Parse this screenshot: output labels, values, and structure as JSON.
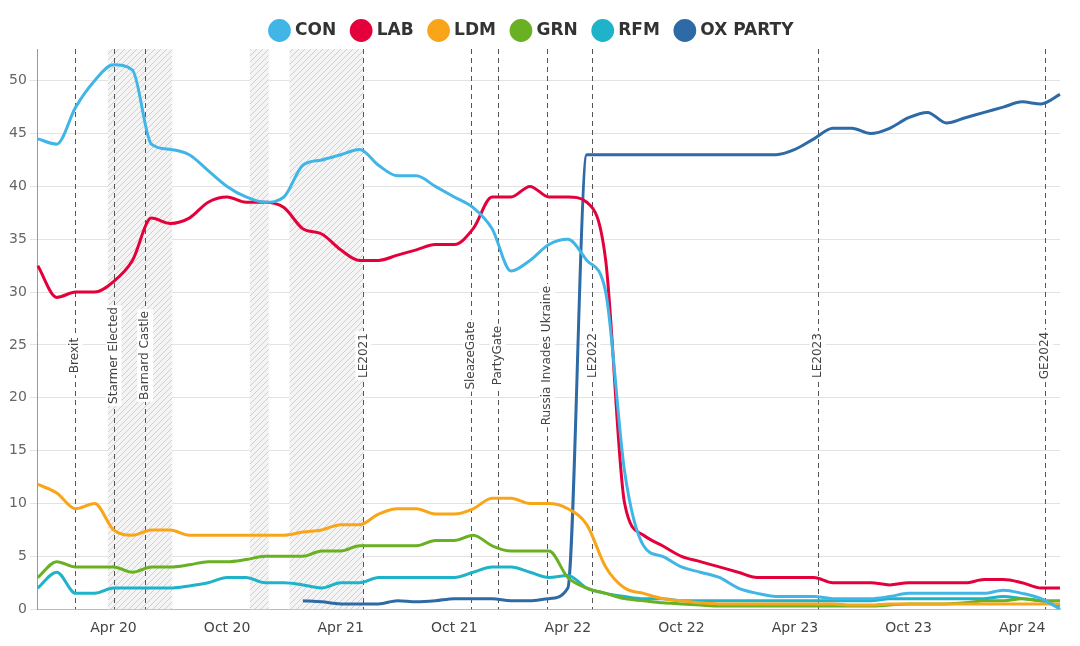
{
  "chart_data": {
    "type": "line",
    "categories": [
      null,
      null,
      null,
      null,
      "Apr 20",
      null,
      null,
      null,
      null,
      null,
      "Oct 20",
      null,
      null,
      null,
      null,
      null,
      "Apr 21",
      null,
      null,
      null,
      null,
      null,
      "Oct 21",
      null,
      null,
      null,
      null,
      null,
      "Apr 22",
      null,
      null,
      null,
      null,
      null,
      "Oct 22",
      null,
      null,
      null,
      null,
      null,
      "Apr 23",
      null,
      null,
      null,
      null,
      null,
      "Oct 23",
      null,
      null,
      null,
      null,
      null,
      "Apr 24",
      null,
      null
    ],
    "series": [
      {
        "name": "CON",
        "color": "#41b6e6",
        "values": [
          44.5,
          44,
          47.5,
          50,
          51.5,
          51,
          44,
          43.5,
          43,
          41.5,
          40,
          39,
          38.5,
          39,
          42,
          42.5,
          43,
          43.5,
          42,
          41,
          41,
          40,
          39,
          38,
          36,
          32,
          33,
          34.5,
          35,
          33,
          30,
          13,
          6,
          5,
          4,
          3.5,
          3,
          2,
          1.5,
          1.2,
          1.2,
          1.2,
          1,
          1,
          1,
          1.2,
          1.5,
          1.5,
          1.5,
          1.5,
          1.5,
          1.8,
          1.5,
          1,
          0
        ]
      },
      {
        "name": "LAB",
        "color": "#e4003b",
        "values": [
          32.5,
          29.5,
          30,
          30,
          31,
          33,
          37,
          36.5,
          37,
          38.5,
          39,
          38.5,
          38.5,
          38,
          36,
          35.5,
          34,
          33,
          33,
          33.5,
          34,
          34.5,
          34.5,
          36,
          39,
          39,
          40,
          39,
          39,
          38.5,
          33,
          10,
          7,
          6,
          5,
          4.5,
          4,
          3.5,
          3,
          3,
          3,
          3,
          2.5,
          2.5,
          2.5,
          2.3,
          2.5,
          2.5,
          2.5,
          2.5,
          2.8,
          2.8,
          2.5,
          2,
          2
        ]
      },
      {
        "name": "LDM",
        "color": "#f9a51a",
        "values": [
          11.8,
          11,
          9.5,
          10,
          7.5,
          7,
          7.5,
          7.5,
          7,
          7,
          7,
          7,
          7,
          7,
          7.3,
          7.5,
          8,
          8,
          9,
          9.5,
          9.5,
          9,
          9,
          9.5,
          10.5,
          10.5,
          10,
          10,
          9.5,
          8,
          4,
          2,
          1.5,
          1,
          0.8,
          0.6,
          0.5,
          0.5,
          0.5,
          0.5,
          0.5,
          0.5,
          0.5,
          0.4,
          0.4,
          0.5,
          0.5,
          0.5,
          0.5,
          0.5,
          0.5,
          0.5,
          0.5,
          0.5,
          0.5
        ]
      },
      {
        "name": "GRN",
        "color": "#6ab023",
        "values": [
          3,
          4.5,
          4,
          4,
          4,
          3.5,
          4,
          4,
          4.2,
          4.5,
          4.5,
          4.7,
          5,
          5,
          5,
          5.5,
          5.5,
          6,
          6,
          6,
          6,
          6.5,
          6.5,
          7,
          6,
          5.5,
          5.5,
          5.5,
          3,
          2,
          1.5,
          1,
          0.8,
          0.6,
          0.5,
          0.4,
          0.3,
          0.3,
          0.3,
          0.3,
          0.3,
          0.3,
          0.3,
          0.3,
          0.3,
          0.4,
          0.5,
          0.5,
          0.5,
          0.6,
          0.8,
          0.8,
          1,
          0.8,
          0.8
        ]
      },
      {
        "name": "RFM",
        "color": "#1fb3c9",
        "values": [
          2,
          3.5,
          1.5,
          1.5,
          2,
          2,
          2,
          2,
          2.2,
          2.5,
          3,
          3,
          2.5,
          2.5,
          2.3,
          2,
          2.5,
          2.5,
          3,
          3,
          3,
          3,
          3,
          3.5,
          4,
          4,
          3.5,
          3,
          3.2,
          2,
          1.5,
          1.2,
          1,
          1,
          0.8,
          0.8,
          0.8,
          0.8,
          0.8,
          0.8,
          0.8,
          0.8,
          0.8,
          0.8,
          0.8,
          1,
          1,
          1,
          1,
          1,
          1,
          1.2,
          1,
          0.8,
          0.3
        ]
      },
      {
        "name": "OX PARTY",
        "color": "#2e6aa6",
        "values": [
          null,
          null,
          null,
          null,
          null,
          null,
          null,
          null,
          null,
          null,
          null,
          null,
          null,
          null,
          0.8,
          0.7,
          0.5,
          0.5,
          0.5,
          0.8,
          0.7,
          0.8,
          1,
          1,
          1,
          0.8,
          0.8,
          1,
          2,
          43,
          43,
          43,
          43,
          43,
          43,
          43,
          43,
          43,
          43,
          43,
          43.5,
          44.5,
          45.5,
          45.5,
          45,
          45.5,
          46.5,
          47,
          46,
          46.5,
          47,
          47.5,
          48,
          47.8,
          48.7
        ]
      }
    ],
    "ylim": [
      0,
      53
    ],
    "yticks": [
      0,
      5,
      10,
      15,
      20,
      25,
      30,
      35,
      40,
      45,
      50
    ],
    "grid": true,
    "legend": "top",
    "annotations": [
      {
        "label": "Brexit",
        "x": 1.94
      },
      {
        "label": "Starmer Elected",
        "x": 4.0
      },
      {
        "label": "Barnard Castle",
        "x": 5.67
      },
      {
        "label": "LE2021",
        "x": 17.2
      },
      {
        "label": "SleazeGate",
        "x": 22.9
      },
      {
        "label": "PartyGate",
        "x": 24.3
      },
      {
        "label": "Russia Invades Ukraine",
        "x": 26.9
      },
      {
        "label": "LE2022",
        "x": 29.3
      },
      {
        "label": "LE2023",
        "x": 41.2
      },
      {
        "label": "GE2024",
        "x": 53.2
      }
    ],
    "shaded_ranges": [
      [
        3.7,
        7.1
      ],
      [
        11.2,
        12.2
      ],
      [
        13.3,
        17.2
      ]
    ]
  }
}
